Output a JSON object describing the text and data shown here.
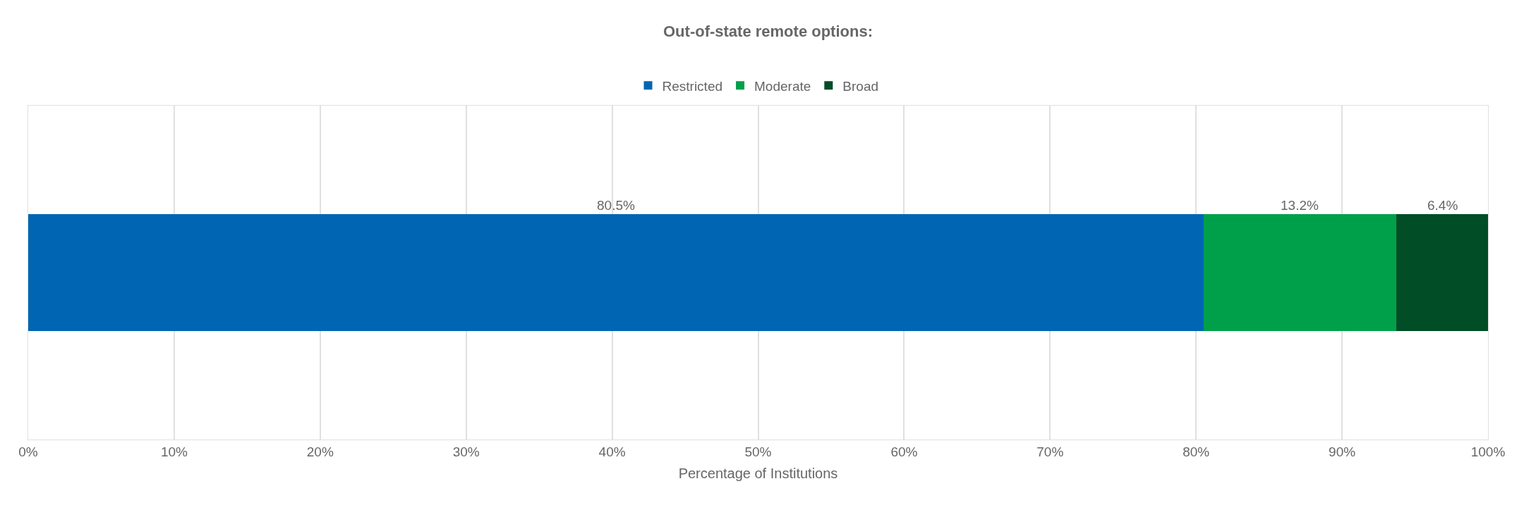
{
  "chart_data": {
    "type": "bar",
    "orientation": "horizontal",
    "stacked": true,
    "title": "Out-of-state remote options:",
    "xlabel": "Percentage of Institutions",
    "categories": [
      null
    ],
    "series": [
      {
        "name": "Restricted",
        "color": "#0066b3",
        "values": [
          80.5
        ],
        "value_labels": [
          "80.5%"
        ]
      },
      {
        "name": "Moderate",
        "color": "#00a04a",
        "values": [
          13.2
        ],
        "value_labels": [
          "13.2%"
        ]
      },
      {
        "name": "Broad",
        "color": "#004d26",
        "values": [
          6.4
        ],
        "value_labels": [
          "6.4%"
        ]
      }
    ],
    "xlim": [
      0,
      100
    ],
    "xticks": [
      {
        "value": 0,
        "label": "0%"
      },
      {
        "value": 10,
        "label": "10%"
      },
      {
        "value": 20,
        "label": "20%"
      },
      {
        "value": 30,
        "label": "30%"
      },
      {
        "value": 40,
        "label": "40%"
      },
      {
        "value": 50,
        "label": "50%"
      },
      {
        "value": 60,
        "label": "60%"
      },
      {
        "value": 70,
        "label": "70%"
      },
      {
        "value": 80,
        "label": "80%"
      },
      {
        "value": 90,
        "label": "90%"
      },
      {
        "value": 100,
        "label": "100%"
      }
    ],
    "grid": "x",
    "legend": "top",
    "tick_labels": "x"
  }
}
